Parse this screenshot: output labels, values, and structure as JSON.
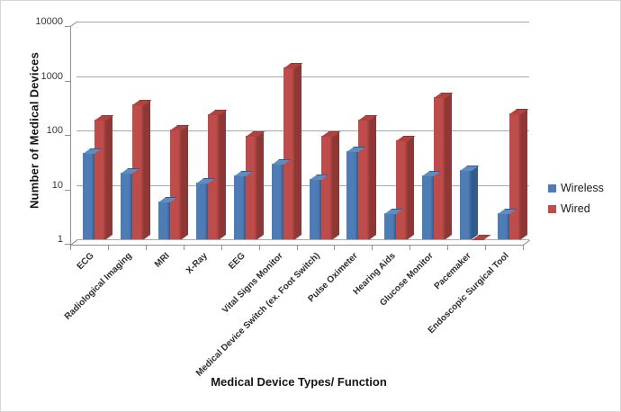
{
  "chart_data": {
    "type": "bar",
    "style": "clustered-3d-effect",
    "title": "",
    "xlabel": "Medical Device Types/ Function",
    "ylabel": "Number of Medical Devices",
    "y_scale": "log",
    "ylim": [
      1,
      10000
    ],
    "yticks": [
      1,
      10,
      100,
      1000,
      10000
    ],
    "ytick_labels": [
      "1",
      "10",
      "100",
      "1000",
      "10000"
    ],
    "grid": true,
    "legend_position": "right",
    "categories": [
      "ECG",
      "Radiological Imaging",
      "MRI",
      "X-Ray",
      "EEG",
      "Vital Signs Monitor",
      "Medical Device Switch (ex. Foot Switch)",
      "Pulse Oximeter",
      "Hearing Aids",
      "Glucose Monitor",
      "Pacemaker",
      "Endoscopic Surgical Tool"
    ],
    "series": [
      {
        "name": "Wireless",
        "color": "#4E7DB5",
        "color_dark": "#2F5B8E",
        "color_cap": "#5E8BC0",
        "values": [
          38,
          17,
          5,
          11,
          15,
          24,
          13,
          41,
          3,
          15,
          19,
          3
        ]
      },
      {
        "name": "Wired",
        "color": "#BE4C4A",
        "color_dark": "#8E3734",
        "color_cap": "#B0423F",
        "values": [
          160,
          300,
          105,
          200,
          80,
          1450,
          80,
          160,
          65,
          410,
          1,
          210
        ]
      }
    ]
  }
}
